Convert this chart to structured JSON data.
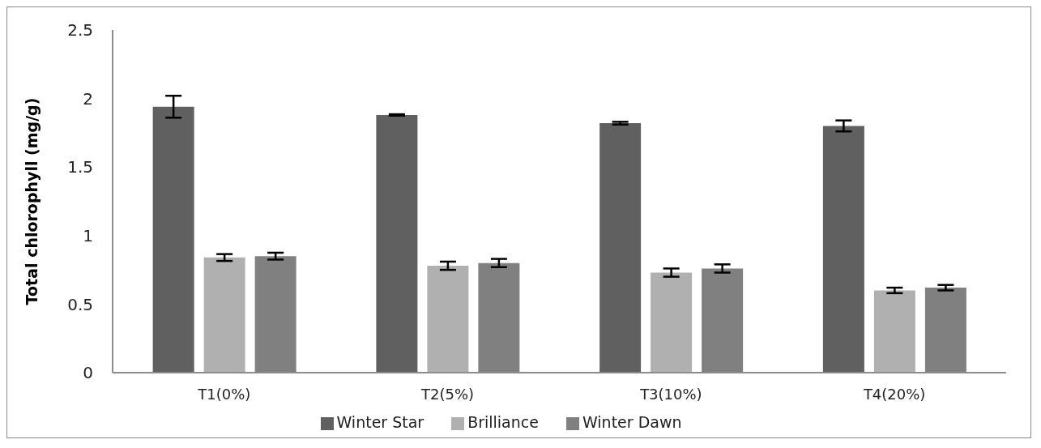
{
  "chart_data": {
    "type": "bar",
    "ylabel": "Total chlorophyll (mg/g)",
    "categories": [
      "T1(0%)",
      "T2(5%)",
      "T3(10%)",
      "T4(20%)"
    ],
    "series": [
      {
        "name": "Winter Star",
        "color": "#606060",
        "values": [
          1.94,
          1.88,
          1.82,
          1.8
        ],
        "errors": [
          0.08,
          0.005,
          0.01,
          0.04
        ]
      },
      {
        "name": "Brilliance",
        "color": "#b0b0b0",
        "values": [
          0.84,
          0.78,
          0.73,
          0.6
        ],
        "errors": [
          0.025,
          0.03,
          0.03,
          0.02
        ]
      },
      {
        "name": "Winter Dawn",
        "color": "#808080",
        "values": [
          0.85,
          0.8,
          0.76,
          0.62
        ],
        "errors": [
          0.025,
          0.03,
          0.03,
          0.02
        ]
      }
    ],
    "ylim": [
      0,
      2.5
    ],
    "yticks": [
      0,
      0.5,
      1,
      1.5,
      2,
      2.5
    ],
    "grid": false,
    "legend": "bottom"
  }
}
